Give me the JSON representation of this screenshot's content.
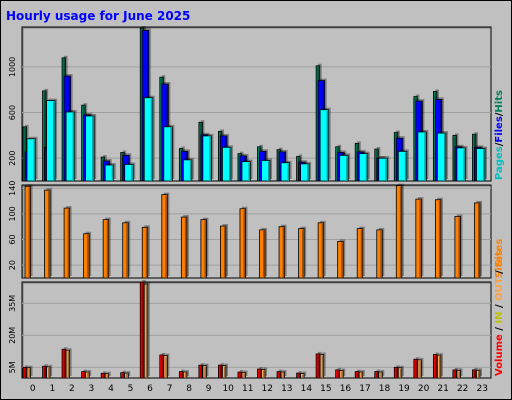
{
  "chart_data": [
    {
      "type": "bar",
      "title": "Hourly usage for June 2025",
      "categories": [
        "0",
        "1",
        "2",
        "3",
        "4",
        "5",
        "6",
        "7",
        "8",
        "9",
        "10",
        "11",
        "12",
        "13",
        "14",
        "15",
        "16",
        "17",
        "18",
        "19",
        "20",
        "21",
        "22",
        "23"
      ],
      "yticks": [
        "200",
        "600",
        "1000"
      ],
      "ylim": [
        0,
        1350
      ],
      "legend_labels": {
        "pages": "Pages",
        "files": "Files",
        "hits": "Hits"
      },
      "series": [
        {
          "name": "Hits",
          "color": "#00805c",
          "values": [
            475,
            790,
            1080,
            665,
            210,
            250,
            1340,
            910,
            285,
            515,
            435,
            240,
            300,
            275,
            215,
            1010,
            300,
            330,
            280,
            425,
            740,
            785,
            400,
            410
          ]
        },
        {
          "name": "Files",
          "color": "#0000ff",
          "values": [
            255,
            295,
            920,
            580,
            175,
            225,
            1320,
            850,
            260,
            405,
            395,
            220,
            260,
            255,
            165,
            880,
            250,
            255,
            200,
            375,
            700,
            715,
            300,
            295
          ]
        },
        {
          "name": "Pages",
          "color": "#00ffff",
          "values": [
            370,
            705,
            605,
            570,
            140,
            145,
            730,
            475,
            185,
            395,
            295,
            170,
            180,
            160,
            150,
            625,
            225,
            240,
            200,
            260,
            430,
            420,
            290,
            285
          ]
        }
      ]
    },
    {
      "type": "bar",
      "categories": [
        "0",
        "1",
        "2",
        "3",
        "4",
        "5",
        "6",
        "7",
        "8",
        "9",
        "10",
        "11",
        "12",
        "13",
        "14",
        "15",
        "16",
        "17",
        "18",
        "19",
        "20",
        "21",
        "22",
        "23"
      ],
      "yticks": [
        "20",
        "60",
        "100",
        "140"
      ],
      "ylim": [
        0,
        145
      ],
      "legend_labels": {
        "sites": "Sites"
      },
      "series": [
        {
          "name": "Sites",
          "color": "#ff8000",
          "values": [
            143,
            137,
            109,
            69,
            91,
            86,
            79,
            130,
            95,
            91,
            81,
            108,
            75,
            80,
            77,
            86,
            57,
            77,
            75,
            144,
            123,
            122,
            96,
            117
          ]
        }
      ]
    },
    {
      "type": "bar",
      "categories": [
        "0",
        "1",
        "2",
        "3",
        "4",
        "5",
        "6",
        "7",
        "8",
        "9",
        "10",
        "11",
        "12",
        "13",
        "14",
        "15",
        "16",
        "17",
        "18",
        "19",
        "20",
        "21",
        "22",
        "23"
      ],
      "yticks": [
        "5M",
        "20M",
        "35M"
      ],
      "ylim": [
        0,
        45
      ],
      "legend_labels": {
        "volume": "Volume",
        "in": "IN",
        "out": "OUT",
        "sites": "Sites"
      },
      "series": [
        {
          "name": "Volume",
          "color": "#ff0000",
          "values": [
            5,
            5.5,
            13.5,
            3,
            2.2,
            2.5,
            45,
            10.8,
            3,
            6,
            6,
            2.8,
            4.2,
            3,
            2.3,
            11.3,
            3.8,
            3,
            3,
            5,
            8.8,
            11,
            3.8,
            3.8
          ]
        },
        {
          "name": "OUT",
          "color": "#ffb060",
          "values": [
            4.8,
            5.2,
            13,
            2.8,
            2,
            2.3,
            44,
            10.5,
            2.8,
            5.8,
            5.8,
            2.6,
            4,
            2.8,
            2.1,
            11,
            3.5,
            2.8,
            2.8,
            4.8,
            8.5,
            10.7,
            3.6,
            3.6
          ]
        }
      ]
    }
  ]
}
